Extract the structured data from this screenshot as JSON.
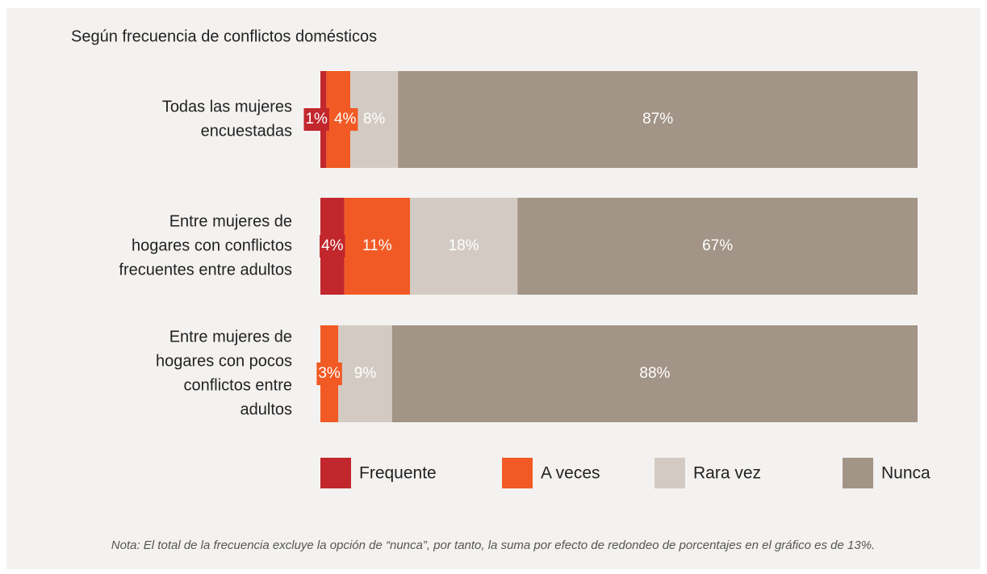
{
  "chart_data": {
    "type": "stacked_bar_horizontal",
    "title": "Según frecuencia de conflictos domésticos",
    "categories": [
      [
        "Todas las mujeres",
        "encuestadas"
      ],
      [
        "Entre mujeres de",
        "hogares con conflictos",
        "frecuentes entre adultos"
      ],
      [
        "Entre mujeres de",
        "hogares con pocos",
        "conflictos entre",
        "adultos"
      ]
    ],
    "series": [
      {
        "name": "Frequente",
        "color": "#c1272d",
        "values": [
          1,
          4,
          null
        ],
        "value_labels": [
          "1%",
          "4%",
          null
        ]
      },
      {
        "name": "A veces",
        "color": "#f15a24",
        "values": [
          4,
          11,
          3
        ],
        "value_labels": [
          "4%",
          "11%",
          "3%"
        ]
      },
      {
        "name": "Rara vez",
        "color": "#d3cbc3",
        "values": [
          8,
          18,
          9
        ],
        "value_labels": [
          "8%",
          "18%",
          "9%"
        ]
      },
      {
        "name": "Nunca",
        "color": "#a29486",
        "values": [
          87,
          67,
          88
        ],
        "value_labels": [
          "87%",
          "67%",
          "88%"
        ]
      }
    ],
    "xlim": [
      0,
      100
    ],
    "note": "Nota: El total de la frecuencia excluye la opción de “nunca”, por tanto, la suma por efecto de redondeo de porcentajes en el gráfico es de 13%."
  }
}
